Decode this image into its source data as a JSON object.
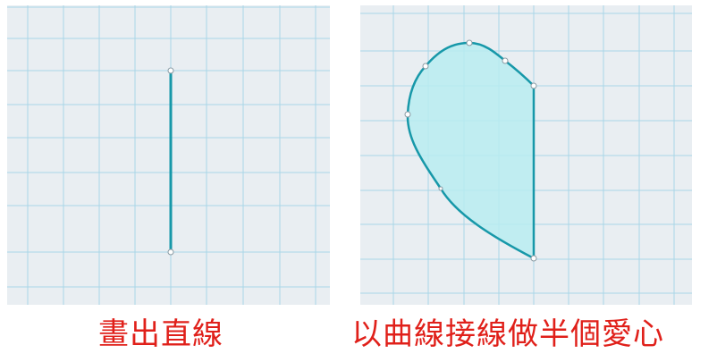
{
  "captions": {
    "left": "畫出直線",
    "right": "以曲線接線做半個愛心"
  },
  "colors": {
    "canvas_bg": "#e9eef2",
    "grid_line": "#a9d6e8",
    "grid_major": "#8fcbe0",
    "stroke": "#1798a9",
    "fill": "#b8ecf1",
    "control_point_fill": "#ffffff",
    "control_point_stroke": "#8a9aa3",
    "caption": "#e0201a"
  },
  "icons": {
    "control_point": "circle-handle-icon"
  }
}
